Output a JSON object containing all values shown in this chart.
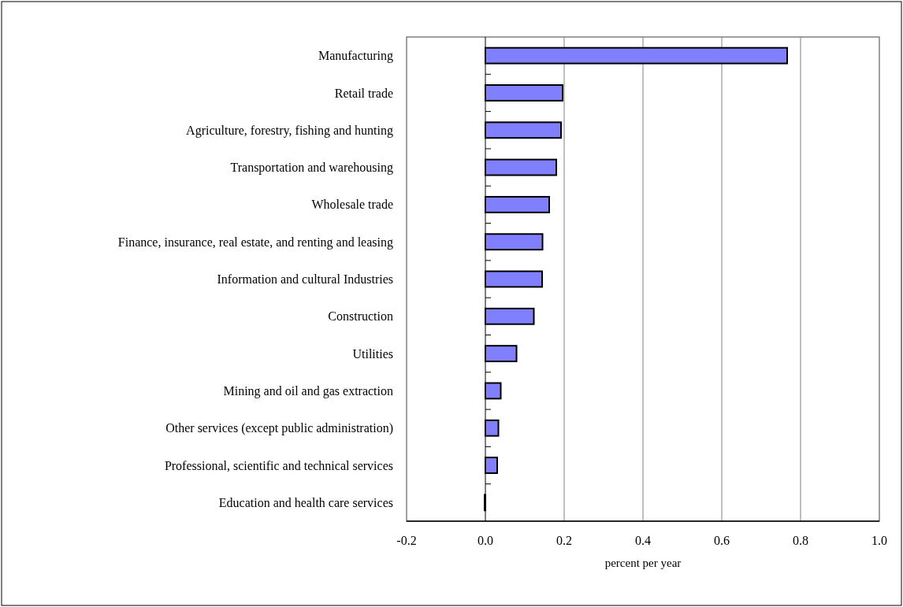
{
  "chart_data": {
    "type": "bar",
    "orientation": "horizontal",
    "xlabel": "percent per year",
    "categories": [
      "Manufacturing",
      "Retail trade",
      "Agriculture, forestry, fishing and hunting",
      "Transportation and warehousing",
      "Wholesale trade",
      "Finance, insurance, real estate, and renting and leasing",
      "Information and cultural Industries",
      "Construction",
      "Utilities",
      "Mining and oil and gas extraction",
      "Other services (except public administration)",
      "Professional, scientific and technical services",
      "Education and health care services"
    ],
    "values": [
      0.766,
      0.196,
      0.192,
      0.18,
      0.162,
      0.145,
      0.144,
      0.123,
      0.079,
      0.039,
      0.033,
      0.03,
      -0.002
    ],
    "color": "#8080ff",
    "xlim": [
      -0.2,
      1.0
    ],
    "xticks": [
      {
        "value": -0.2,
        "label": "-0.2"
      },
      {
        "value": 0,
        "label": "0.0"
      },
      {
        "value": 0.2,
        "label": "0.2"
      },
      {
        "value": 0.4,
        "label": "0.4"
      },
      {
        "value": 0.6,
        "label": "0.6"
      },
      {
        "value": 0.8,
        "label": "0.8"
      },
      {
        "value": 1,
        "label": "1.0"
      }
    ],
    "grid": "x"
  }
}
